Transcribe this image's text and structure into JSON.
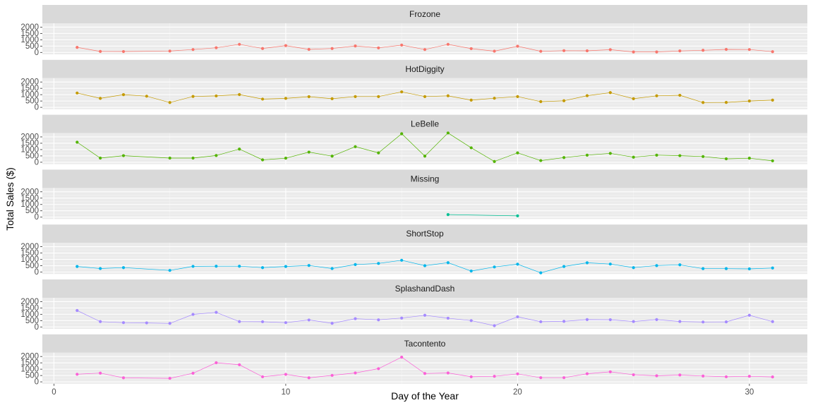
{
  "chart_data": {
    "type": "line",
    "facet": "rows",
    "xlabel": "Day of the Year",
    "ylabel": "Total Sales ($)",
    "xlim": [
      -0.5,
      32.5
    ],
    "ylim": [
      -150,
      2300
    ],
    "x_ticks": [
      0,
      10,
      20,
      30
    ],
    "y_ticks": [
      0,
      500,
      1000,
      1500,
      2000
    ],
    "grid": true,
    "legend": "none",
    "panels": [
      {
        "name": "Frozone",
        "color": "#F8766D",
        "x": [
          1,
          2,
          3,
          5,
          6,
          7,
          8,
          9,
          10,
          11,
          12,
          13,
          14,
          15,
          16,
          17,
          18,
          19,
          20,
          21,
          22,
          23,
          24,
          25,
          26,
          27,
          28,
          29,
          30,
          31
        ],
        "y": [
          400,
          80,
          70,
          110,
          230,
          370,
          640,
          310,
          540,
          240,
          310,
          510,
          360,
          580,
          230,
          640,
          300,
          100,
          490,
          90,
          140,
          130,
          220,
          40,
          40,
          120,
          170,
          240,
          230,
          60
        ]
      },
      {
        "name": "HotDiggity",
        "color": "#C49A00",
        "x": [
          1,
          2,
          3,
          4,
          5,
          6,
          7,
          8,
          9,
          10,
          11,
          12,
          13,
          14,
          15,
          16,
          17,
          18,
          19,
          20,
          21,
          22,
          23,
          24,
          25,
          26,
          27,
          28,
          29,
          30,
          31
        ],
        "y": [
          1130,
          710,
          1000,
          880,
          380,
          860,
          900,
          1010,
          650,
          710,
          840,
          680,
          850,
          850,
          1220,
          850,
          910,
          570,
          720,
          850,
          450,
          520,
          920,
          1160,
          680,
          910,
          950,
          380,
          390,
          500,
          570
        ]
      },
      {
        "name": "LeBelle",
        "color": "#53B400",
        "x": [
          1,
          2,
          3,
          5,
          6,
          7,
          8,
          9,
          10,
          11,
          12,
          13,
          14,
          15,
          16,
          17,
          18,
          19,
          20,
          21,
          22,
          23,
          24,
          25,
          26,
          27,
          28,
          29,
          30,
          31
        ],
        "y": [
          1580,
          330,
          520,
          330,
          330,
          530,
          1040,
          190,
          320,
          800,
          480,
          1230,
          740,
          2250,
          480,
          2310,
          1140,
          60,
          740,
          130,
          370,
          560,
          700,
          400,
          560,
          520,
          450,
          270,
          320,
          110
        ]
      },
      {
        "name": "Missing",
        "color": "#00C094",
        "x": [
          17,
          20
        ],
        "y": [
          200,
          100
        ]
      },
      {
        "name": "ShortStop",
        "color": "#00B6EB",
        "x": [
          1,
          2,
          3,
          5,
          6,
          7,
          8,
          9,
          10,
          11,
          12,
          13,
          14,
          15,
          16,
          17,
          18,
          19,
          20,
          21,
          22,
          23,
          24,
          25,
          26,
          27,
          28,
          29,
          30,
          31
        ],
        "y": [
          440,
          280,
          350,
          130,
          450,
          460,
          460,
          350,
          440,
          520,
          280,
          590,
          680,
          930,
          500,
          740,
          80,
          400,
          620,
          -60,
          440,
          730,
          630,
          350,
          510,
          570,
          270,
          270,
          250,
          320
        ]
      },
      {
        "name": "SplashandDash",
        "color": "#A58AFF",
        "x": [
          1,
          2,
          3,
          4,
          5,
          6,
          7,
          8,
          9,
          10,
          11,
          12,
          13,
          14,
          15,
          16,
          17,
          18,
          19,
          20,
          21,
          22,
          23,
          24,
          25,
          26,
          27,
          28,
          29,
          30,
          31
        ],
        "y": [
          1300,
          420,
          340,
          320,
          280,
          990,
          1150,
          420,
          410,
          340,
          550,
          290,
          650,
          560,
          700,
          920,
          690,
          500,
          100,
          800,
          410,
          440,
          580,
          570,
          430,
          580,
          430,
          390,
          400,
          920,
          420
        ]
      },
      {
        "name": "Tacontento",
        "color": "#FB61D7",
        "x": [
          1,
          2,
          3,
          5,
          6,
          7,
          8,
          9,
          10,
          11,
          12,
          13,
          14,
          15,
          16,
          17,
          18,
          19,
          20,
          21,
          22,
          23,
          24,
          25,
          26,
          27,
          28,
          29,
          30,
          31
        ],
        "y": [
          600,
          690,
          320,
          280,
          680,
          1510,
          1350,
          400,
          590,
          320,
          510,
          700,
          1040,
          1950,
          660,
          700,
          400,
          440,
          630,
          330,
          330,
          640,
          790,
          560,
          480,
          540,
          460,
          400,
          440,
          390
        ]
      }
    ]
  }
}
